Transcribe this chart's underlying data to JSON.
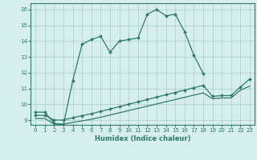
{
  "xlabel": "Humidex (Indice chaleur)",
  "background_color": "#d6eeee",
  "grid_color": "#aacccc",
  "line_color": "#2d7a6e",
  "xlim": [
    -0.5,
    23.5
  ],
  "ylim": [
    8.7,
    16.4
  ],
  "yticks": [
    9,
    10,
    11,
    12,
    13,
    14,
    15,
    16
  ],
  "xticks": [
    0,
    1,
    2,
    3,
    4,
    5,
    6,
    7,
    8,
    9,
    10,
    11,
    12,
    13,
    14,
    15,
    16,
    17,
    18,
    19,
    20,
    21,
    22,
    23
  ],
  "line1_x": [
    0,
    1,
    2,
    3,
    4,
    5,
    6,
    7,
    8,
    9,
    10,
    11,
    12,
    13,
    14,
    15,
    16,
    17,
    18
  ],
  "line1_y": [
    9.5,
    9.5,
    8.8,
    8.7,
    11.5,
    13.8,
    14.1,
    14.3,
    13.3,
    14.0,
    14.1,
    14.2,
    15.7,
    16.0,
    15.6,
    15.7,
    14.6,
    13.1,
    11.95
  ],
  "line2_x": [
    0,
    1,
    2,
    3,
    4,
    5,
    6,
    7,
    8,
    9,
    10,
    11,
    12,
    13,
    14,
    15,
    16,
    17,
    18,
    19,
    20,
    21,
    22,
    23
  ],
  "line2_y": [
    9.3,
    9.3,
    9.0,
    9.0,
    9.15,
    9.28,
    9.4,
    9.55,
    9.7,
    9.85,
    10.0,
    10.15,
    10.3,
    10.45,
    10.6,
    10.75,
    10.9,
    11.05,
    11.2,
    10.5,
    10.55,
    10.55,
    11.1,
    11.6
  ],
  "line3_x": [
    0,
    1,
    2,
    3,
    4,
    5,
    6,
    7,
    8,
    9,
    10,
    11,
    12,
    13,
    14,
    15,
    16,
    17,
    18,
    19,
    20,
    21,
    22,
    23
  ],
  "line3_y": [
    9.1,
    9.1,
    8.75,
    8.75,
    8.85,
    8.95,
    9.05,
    9.18,
    9.32,
    9.46,
    9.6,
    9.74,
    9.88,
    10.02,
    10.16,
    10.3,
    10.44,
    10.58,
    10.72,
    10.35,
    10.4,
    10.4,
    10.9,
    11.15
  ]
}
